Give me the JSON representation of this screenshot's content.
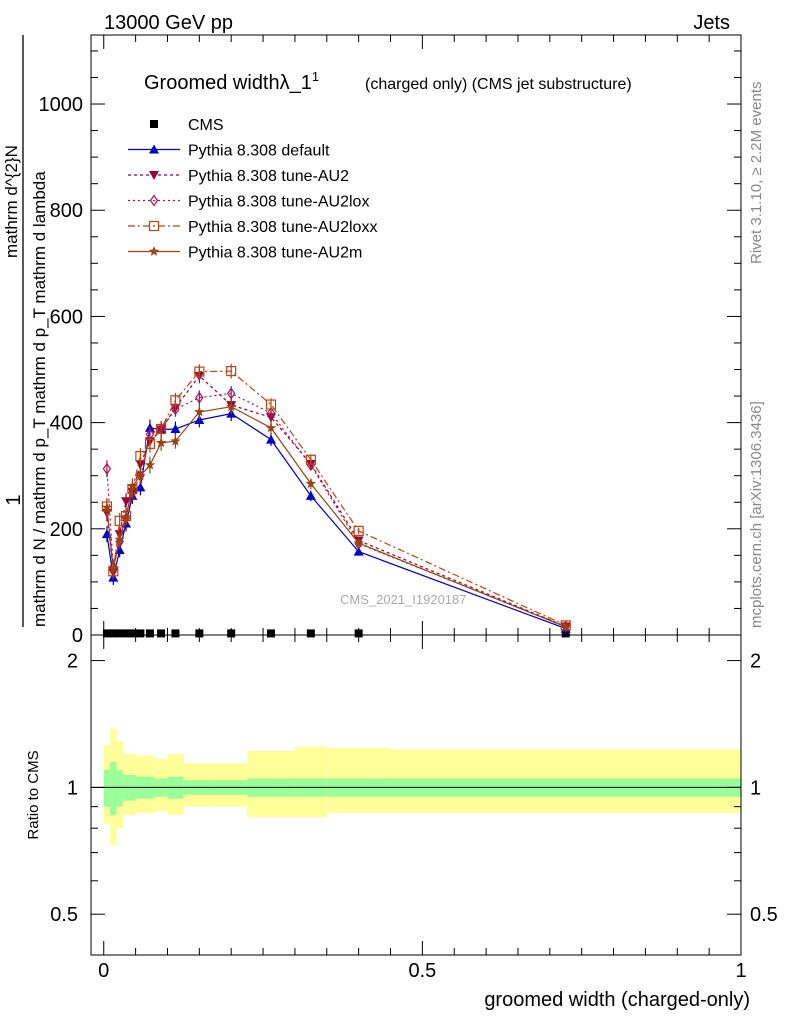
{
  "header": {
    "left": "13000 GeV pp",
    "right": "Jets"
  },
  "side": {
    "rivet": "Rivet 3.1.10, ≥ 2.2M events",
    "mcplots": "mcplots.cern.ch [arXiv:1306.3436]"
  },
  "watermark": "CMS_2021_I1920187",
  "chart_data": {
    "type": "line",
    "title": "Groomed widthλ_1",
    "title_sup": "1",
    "title_note": "(charged only) (CMS jet substructure)",
    "xlabel": "groomed width (charged-only)",
    "ylabel_main_top": "1",
    "ylabel_main_bottom": "mathrm d N / mathrm d p_T mathrm d p_T mathrm d lambda",
    "ylabel_main_numerator": "mathrm d^{2}N",
    "ylabel_ratio": "Ratio to CMS",
    "xlim": [
      -0.02,
      1.0
    ],
    "ylim": [
      0,
      1130
    ],
    "ratio_ylim": [
      0.4,
      2.3
    ],
    "x_ticks": [
      "0",
      "0.5",
      "1"
    ],
    "y_ticks": [
      "0",
      "200",
      "400",
      "600",
      "800",
      "1000"
    ],
    "ratio_ticks": [
      "0.5",
      "1",
      "2"
    ],
    "legend_position": "top-left",
    "bin_edges": [
      0,
      0.01,
      0.02,
      0.03,
      0.04,
      0.05,
      0.065,
      0.08,
      0.1,
      0.125,
      0.175,
      0.225,
      0.3,
      0.35,
      0.45,
      1.0
    ],
    "x": [
      0.005,
      0.015,
      0.025,
      0.035,
      0.045,
      0.0575,
      0.0725,
      0.09,
      0.1125,
      0.15,
      0.2,
      0.2625,
      0.325,
      0.4,
      0.725
    ],
    "cms": [
      3,
      3,
      3,
      3,
      3,
      3,
      3,
      3,
      3,
      3,
      3,
      3,
      3,
      3,
      3
    ],
    "ratio_band_inner": [
      [
        0.9,
        1.1
      ],
      [
        0.86,
        1.15
      ],
      [
        0.9,
        1.1
      ],
      [
        0.93,
        1.07
      ],
      [
        0.93,
        1.07
      ],
      [
        0.94,
        1.06
      ],
      [
        0.94,
        1.06
      ],
      [
        0.95,
        1.05
      ],
      [
        0.94,
        1.06
      ],
      [
        0.96,
        1.04
      ],
      [
        0.96,
        1.04
      ],
      [
        0.95,
        1.05
      ],
      [
        0.95,
        1.05
      ],
      [
        0.95,
        1.05
      ],
      [
        0.95,
        1.05
      ]
    ],
    "ratio_band_outer": [
      [
        0.82,
        1.26
      ],
      [
        0.73,
        1.38
      ],
      [
        0.8,
        1.29
      ],
      [
        0.86,
        1.2
      ],
      [
        0.86,
        1.2
      ],
      [
        0.87,
        1.19
      ],
      [
        0.87,
        1.19
      ],
      [
        0.88,
        1.17
      ],
      [
        0.86,
        1.2
      ],
      [
        0.9,
        1.14
      ],
      [
        0.9,
        1.14
      ],
      [
        0.85,
        1.22
      ],
      [
        0.85,
        1.25
      ],
      [
        0.87,
        1.24
      ],
      [
        0.87,
        1.23
      ]
    ],
    "series": [
      {
        "name": "CMS",
        "color": "#000000",
        "marker": "square",
        "dash": "",
        "values": [
          3,
          3,
          3,
          3,
          3,
          3,
          3,
          3,
          3,
          3,
          3,
          3,
          3,
          3,
          3
        ],
        "errors": [
          0,
          0,
          0,
          0,
          0,
          0,
          0,
          0,
          0,
          0,
          0,
          0,
          0,
          0,
          0
        ]
      },
      {
        "name": "Pythia 8.308 default",
        "color": "#0000cc",
        "marker": "triangle-up",
        "dash": "",
        "values": [
          190,
          108,
          160,
          210,
          262,
          278,
          390,
          387,
          388,
          405,
          417,
          368,
          262,
          157,
          12
        ],
        "errors": [
          15,
          14,
          14,
          15,
          15,
          15,
          16,
          15,
          14,
          14,
          14,
          12,
          10,
          6,
          2
        ]
      },
      {
        "name": "Pythia 8.308 tune-AU2",
        "color": "#990033",
        "marker": "triangle-down",
        "dash": "3,3",
        "values": [
          230,
          118,
          190,
          252,
          270,
          322,
          365,
          387,
          428,
          488,
          433,
          410,
          322,
          178,
          16
        ],
        "errors": [
          16,
          14,
          15,
          15,
          15,
          15,
          16,
          15,
          14,
          14,
          14,
          12,
          10,
          6,
          2
        ]
      },
      {
        "name": "Pythia 8.308 tune-AU2lox",
        "color": "#aa1155",
        "marker": "diamond",
        "dash": "2,3",
        "values": [
          313,
          128,
          176,
          220,
          268,
          300,
          378,
          388,
          425,
          447,
          455,
          418,
          320,
          172,
          16
        ],
        "errors": [
          16,
          14,
          15,
          15,
          15,
          15,
          16,
          15,
          14,
          14,
          14,
          12,
          10,
          6,
          2
        ]
      },
      {
        "name": "Pythia 8.308 tune-AU2loxx",
        "color": "#bb4411",
        "marker": "open-square",
        "dash": "7,3,2,3",
        "values": [
          242,
          120,
          215,
          224,
          275,
          337,
          360,
          388,
          442,
          496,
          497,
          434,
          330,
          196,
          18
        ],
        "errors": [
          16,
          14,
          15,
          15,
          15,
          15,
          16,
          15,
          14,
          14,
          14,
          12,
          10,
          6,
          2
        ]
      },
      {
        "name": "Pythia 8.308 tune-AU2m",
        "color": "#994411",
        "marker": "star",
        "dash": "",
        "values": [
          240,
          125,
          180,
          222,
          280,
          300,
          320,
          362,
          365,
          420,
          430,
          390,
          285,
          173,
          15
        ],
        "errors": [
          16,
          14,
          15,
          15,
          15,
          15,
          16,
          15,
          14,
          14,
          14,
          12,
          10,
          6,
          2
        ]
      }
    ]
  }
}
